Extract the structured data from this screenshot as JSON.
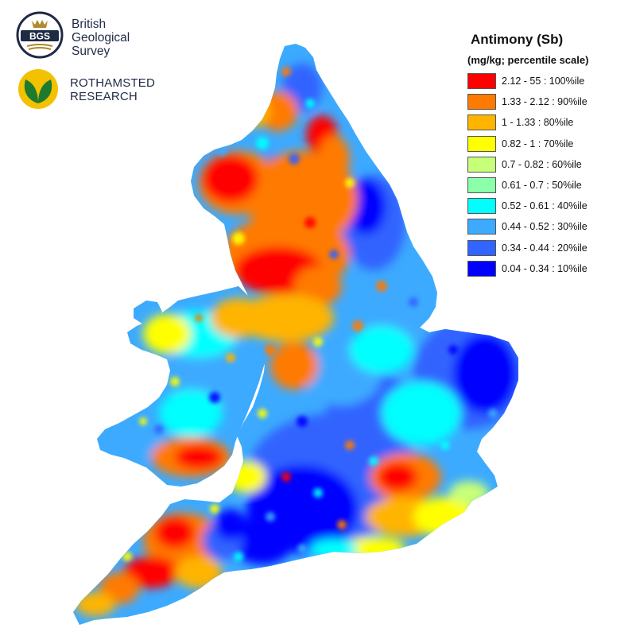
{
  "logos": {
    "bgs": {
      "badge_text": "BGS",
      "lines": [
        "British",
        "Geological",
        "Survey"
      ],
      "colors": {
        "ring": "#1f2a44",
        "gold": "#b08a2e"
      }
    },
    "rothamsted": {
      "lines": [
        "ROTHAMSTED",
        "RESEARCH"
      ],
      "colors": {
        "circle": "#f2c200",
        "leaf": "#1e7a2e"
      }
    }
  },
  "legend": {
    "title": "Antimony (Sb)",
    "subtitle": "(mg/kg; percentile scale)",
    "classes": [
      {
        "label": "2.12 - 55 : 100%ile",
        "color": "#ff0000"
      },
      {
        "label": "1.33 - 2.12 : 90%ile",
        "color": "#ff7a00"
      },
      {
        "label": "1 - 1.33 : 80%ile",
        "color": "#ffb400"
      },
      {
        "label": "0.82 - 1 : 70%ile",
        "color": "#ffff00"
      },
      {
        "label": "0.7 - 0.82 : 60%ile",
        "color": "#c8ff78"
      },
      {
        "label": "0.61 - 0.7 : 50%ile",
        "color": "#8cffaa"
      },
      {
        "label": "0.52 - 0.61 : 40%ile",
        "color": "#00ffff"
      },
      {
        "label": "0.44 - 0.52 : 30%ile",
        "color": "#3caaff"
      },
      {
        "label": "0.34 - 0.44 : 20%ile",
        "color": "#3264ff"
      },
      {
        "label": "0.04 - 0.34 : 10%ile",
        "color": "#0000ff"
      }
    ]
  },
  "map": {
    "region": "England and Wales",
    "element": "Antimony (Sb)",
    "color_order_high_to_low": [
      "#ff0000",
      "#ff7a00",
      "#ffb400",
      "#ffff00",
      "#c8ff78",
      "#8cffaa",
      "#00ffff",
      "#3caaff",
      "#3264ff",
      "#0000ff"
    ]
  }
}
